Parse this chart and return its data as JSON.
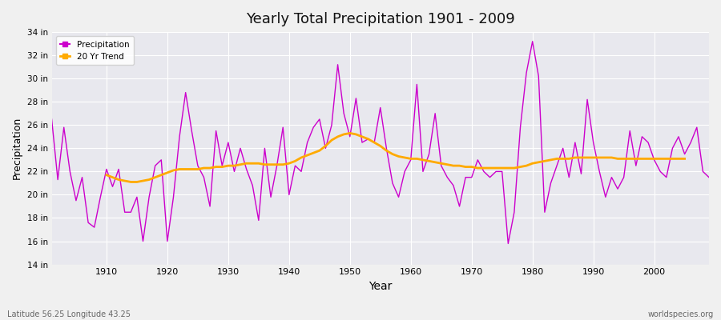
{
  "title": "Yearly Total Precipitation 1901 - 2009",
  "xlabel": "Year",
  "ylabel": "Precipitation",
  "lat_lon_label": "Latitude 56.25 Longitude 43.25",
  "watermark": "worldspecies.org",
  "bg_color": "#f0f0f0",
  "plot_bg_color": "#e8e8ee",
  "line_color": "#cc00cc",
  "trend_color": "#ffaa00",
  "ylim": [
    14,
    34
  ],
  "yticks": [
    14,
    16,
    18,
    20,
    22,
    24,
    26,
    28,
    30,
    32,
    34
  ],
  "ytick_labels": [
    "14 in",
    "16 in",
    "18 in",
    "20 in",
    "22 in",
    "24 in",
    "26 in",
    "28 in",
    "30 in",
    "32 in",
    "34 in"
  ],
  "years": [
    1901,
    1902,
    1903,
    1904,
    1905,
    1906,
    1907,
    1908,
    1909,
    1910,
    1911,
    1912,
    1913,
    1914,
    1915,
    1916,
    1917,
    1918,
    1919,
    1920,
    1921,
    1922,
    1923,
    1924,
    1925,
    1926,
    1927,
    1928,
    1929,
    1930,
    1931,
    1932,
    1933,
    1934,
    1935,
    1936,
    1937,
    1938,
    1939,
    1940,
    1941,
    1942,
    1943,
    1944,
    1945,
    1946,
    1947,
    1948,
    1949,
    1950,
    1951,
    1952,
    1953,
    1954,
    1955,
    1956,
    1957,
    1958,
    1959,
    1960,
    1961,
    1962,
    1963,
    1964,
    1965,
    1966,
    1967,
    1968,
    1969,
    1970,
    1971,
    1972,
    1973,
    1974,
    1975,
    1976,
    1977,
    1978,
    1979,
    1980,
    1981,
    1982,
    1983,
    1984,
    1985,
    1986,
    1987,
    1988,
    1989,
    1990,
    1991,
    1992,
    1993,
    1994,
    1995,
    1996,
    1997,
    1998,
    1999,
    2000,
    2001,
    2002,
    2003,
    2004,
    2005,
    2006,
    2007,
    2008,
    2009
  ],
  "precip": [
    26.5,
    21.3,
    25.8,
    22.0,
    19.5,
    21.5,
    17.6,
    17.2,
    19.8,
    22.2,
    20.7,
    22.2,
    18.5,
    18.5,
    19.8,
    16.0,
    19.8,
    22.5,
    23.0,
    16.0,
    19.8,
    25.0,
    28.8,
    25.5,
    22.5,
    21.5,
    19.0,
    25.5,
    22.5,
    24.5,
    22.0,
    24.0,
    22.2,
    20.8,
    17.8,
    24.0,
    19.8,
    22.5,
    25.8,
    20.0,
    22.5,
    22.0,
    24.5,
    25.8,
    26.5,
    24.0,
    26.0,
    31.2,
    27.0,
    25.0,
    28.3,
    24.5,
    24.8,
    24.5,
    27.5,
    24.0,
    21.0,
    19.8,
    22.0,
    23.0,
    29.5,
    22.0,
    23.5,
    27.0,
    22.5,
    21.5,
    20.8,
    19.0,
    21.5,
    21.5,
    23.0,
    22.0,
    21.5,
    22.0,
    22.0,
    15.8,
    18.5,
    25.8,
    30.5,
    33.2,
    30.2,
    18.5,
    21.0,
    22.5,
    24.0,
    21.5,
    24.5,
    21.8,
    28.2,
    24.5,
    22.0,
    19.8,
    21.5,
    20.5,
    21.5,
    25.5,
    22.5,
    25.0,
    24.5,
    23.0,
    22.0,
    21.5,
    24.0,
    25.0,
    23.5,
    24.5,
    25.8,
    22.0,
    21.5
  ],
  "trend_years": [
    1910,
    1911,
    1912,
    1913,
    1914,
    1915,
    1916,
    1917,
    1918,
    1919,
    1920,
    1921,
    1922,
    1923,
    1924,
    1925,
    1926,
    1927,
    1928,
    1929,
    1930,
    1931,
    1932,
    1933,
    1934,
    1935,
    1936,
    1937,
    1938,
    1939,
    1940,
    1941,
    1942,
    1943,
    1944,
    1945,
    1946,
    1947,
    1948,
    1949,
    1950,
    1951,
    1952,
    1953,
    1954,
    1955,
    1956,
    1957,
    1958,
    1959,
    1960,
    1961,
    1962,
    1963,
    1964,
    1965,
    1966,
    1967,
    1968,
    1969,
    1970,
    1971,
    1972,
    1973,
    1974,
    1975,
    1976,
    1977,
    1978,
    1979,
    1980,
    1981,
    1982,
    1983,
    1984,
    1985,
    1986,
    1987,
    1988,
    1989,
    1990,
    1991,
    1992,
    1993,
    1994,
    1995,
    1996,
    1997,
    1998,
    1999,
    2000,
    2001,
    2002,
    2003,
    2004,
    2005
  ],
  "trend": [
    21.7,
    21.5,
    21.3,
    21.2,
    21.1,
    21.1,
    21.2,
    21.3,
    21.5,
    21.7,
    21.9,
    22.1,
    22.2,
    22.2,
    22.2,
    22.2,
    22.3,
    22.3,
    22.4,
    22.4,
    22.5,
    22.5,
    22.6,
    22.7,
    22.7,
    22.7,
    22.6,
    22.6,
    22.6,
    22.6,
    22.7,
    22.9,
    23.2,
    23.4,
    23.6,
    23.8,
    24.2,
    24.7,
    25.0,
    25.2,
    25.3,
    25.2,
    25.0,
    24.8,
    24.5,
    24.2,
    23.8,
    23.5,
    23.3,
    23.2,
    23.1,
    23.1,
    23.0,
    22.9,
    22.8,
    22.7,
    22.6,
    22.5,
    22.5,
    22.4,
    22.4,
    22.3,
    22.3,
    22.3,
    22.3,
    22.3,
    22.3,
    22.3,
    22.4,
    22.5,
    22.7,
    22.8,
    22.9,
    23.0,
    23.1,
    23.1,
    23.1,
    23.2,
    23.2,
    23.2,
    23.2,
    23.2,
    23.2,
    23.2,
    23.1,
    23.1,
    23.1,
    23.1,
    23.1,
    23.1,
    23.1,
    23.1,
    23.1,
    23.1,
    23.1,
    23.1
  ]
}
